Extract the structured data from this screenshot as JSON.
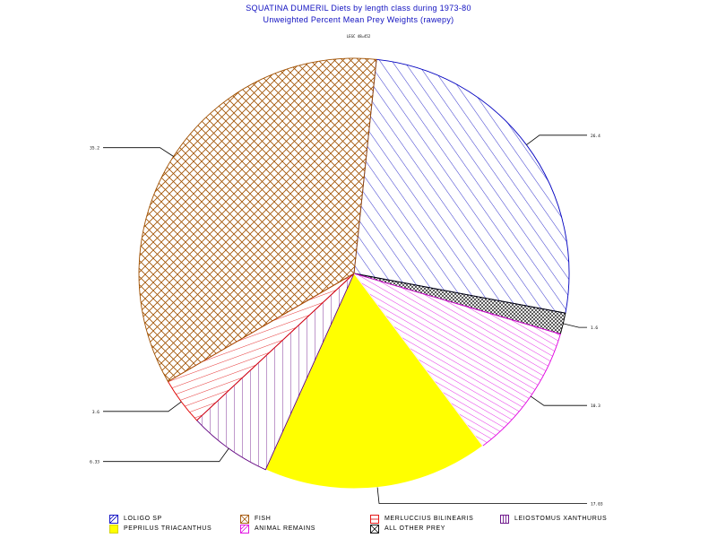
{
  "title": "SQUATINA DUMERIL Diets by length class during 1973-80",
  "subtitle": "Unweighted Percent Mean Prey Weights (rawepy)",
  "subnote": "LEGC 48=452",
  "chart_data": {
    "type": "pie",
    "title": "SQUATINA DUMERIL Diets by length class during 1973-80",
    "subtitle": "Unweighted Percent Mean Prey Weights (rawepy)",
    "slices": [
      {
        "label": "LOLIGO SP",
        "value": 26.4,
        "value_label": "26.4",
        "color": "#0000c0",
        "pattern": "diag-right"
      },
      {
        "label": "ALL OTHER PREY",
        "value": 1.6,
        "value_label": "1.6",
        "color": "#000000",
        "pattern": "crosshatch-fine"
      },
      {
        "label": "ANIMAL REMAINS",
        "value": 10.3,
        "value_label": "10.3",
        "color": "#e000e0",
        "pattern": "diag-right"
      },
      {
        "label": "PEPRILUS TRIACANTHUS",
        "value": 17.03,
        "value_label": "17.03",
        "color": "#ffff00",
        "pattern": "solid"
      },
      {
        "label": "LEIOSTOMUS XANTHURUS",
        "value": 6.33,
        "value_label": "6.33",
        "color": "#600080",
        "pattern": "vertical"
      },
      {
        "label": "MERLUCCIUS BILINEARIS",
        "value": 3.6,
        "value_label": "3.6",
        "color": "#e00000",
        "pattern": "horizontal"
      },
      {
        "label": "FISH",
        "value": 35.2,
        "value_label": "35.2",
        "color": "#a05000",
        "pattern": "crosshatch"
      }
    ],
    "legend": [
      {
        "label": "LOLIGO SP",
        "color": "#0000c0",
        "pattern": "diag-right"
      },
      {
        "label": "FISH",
        "color": "#a05000",
        "pattern": "crosshatch"
      },
      {
        "label": "MERLUCCIUS BILINEARIS",
        "color": "#e00000",
        "pattern": "horizontal"
      },
      {
        "label": "LEIOSTOMUS XANTHURUS",
        "color": "#600080",
        "pattern": "vertical"
      },
      {
        "label": "PEPRILUS TRIACANTHUS",
        "color": "#ffff00",
        "pattern": "solid"
      },
      {
        "label": "ANIMAL REMAINS",
        "color": "#e000e0",
        "pattern": "diag-right"
      },
      {
        "label": "ALL OTHER PREY",
        "color": "#000000",
        "pattern": "crosshatch-fine"
      }
    ],
    "legend_position": "bottom"
  }
}
